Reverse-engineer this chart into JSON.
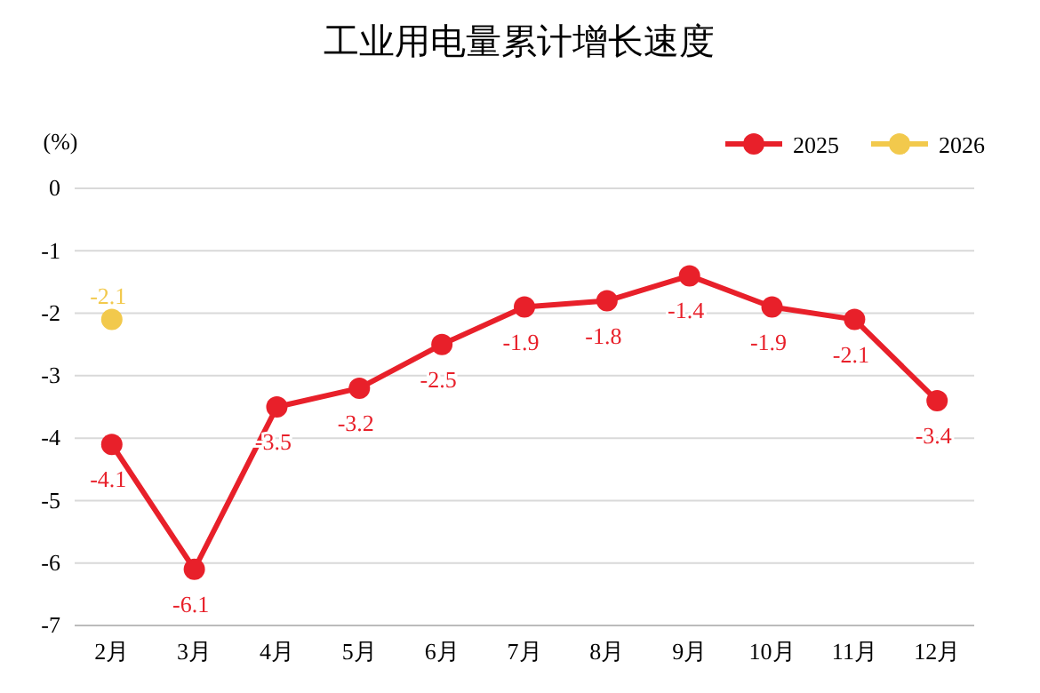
{
  "chart_data": {
    "type": "line",
    "title": "工业用电量累计增长速度",
    "ylabel": "(%)",
    "categories": [
      "2月",
      "3月",
      "4月",
      "5月",
      "6月",
      "7月",
      "8月",
      "9月",
      "10月",
      "11月",
      "12月"
    ],
    "series": [
      {
        "name": "2025",
        "color": "#e8202a",
        "values": [
          -4.1,
          -6.1,
          -3.5,
          -3.2,
          -2.5,
          -1.9,
          -1.8,
          -1.4,
          -1.9,
          -2.1,
          -3.4
        ]
      },
      {
        "name": "2026",
        "color": "#f2c94c",
        "values": [
          -2.1,
          null,
          null,
          null,
          null,
          null,
          null,
          null,
          null,
          null,
          null
        ]
      }
    ],
    "ylim": [
      -7,
      0
    ],
    "yticks": [
      0,
      -1,
      -2,
      -3,
      -4,
      -5,
      -6,
      -7
    ],
    "grid": "y",
    "legend": "top right",
    "marker": "circle",
    "line_style": "solid",
    "data_labels": true
  }
}
